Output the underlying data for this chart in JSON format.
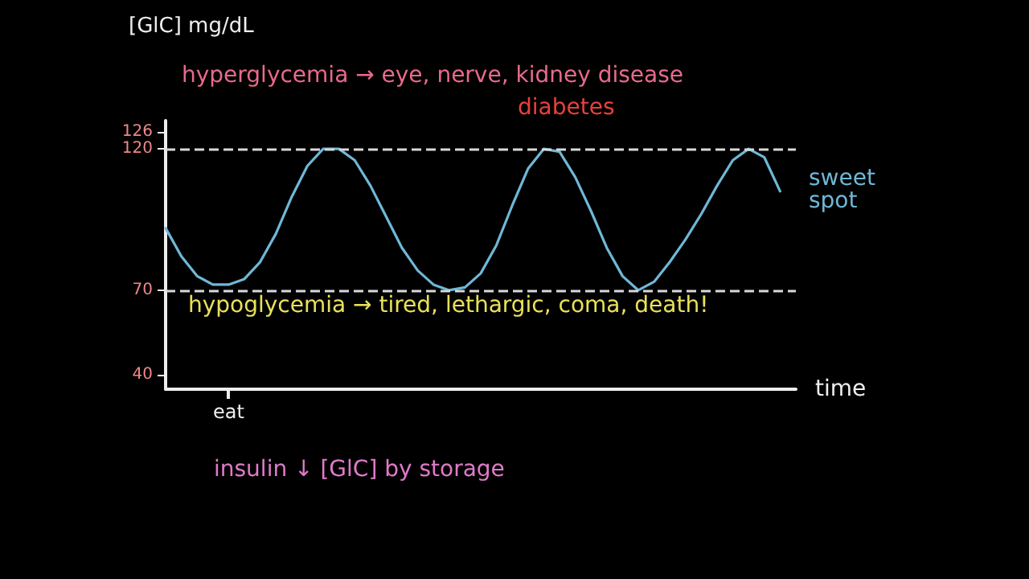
{
  "chart_data": {
    "type": "line",
    "ylabel": "[GlC] mg/dL",
    "xlabel": "time",
    "categories": [
      null,
      null,
      null,
      null,
      "eat",
      null,
      null,
      null,
      null,
      null,
      null,
      null,
      null,
      null,
      null,
      null,
      null,
      null,
      null,
      null,
      null,
      null,
      null,
      null,
      null,
      null,
      null,
      null,
      null,
      null,
      null,
      null,
      null,
      null,
      null,
      null,
      null,
      null,
      null,
      null,
      null
    ],
    "series": [
      {
        "color": "#6fb7d6",
        "values": [
          92,
          82,
          75,
          72,
          72,
          74,
          80,
          90,
          103,
          114,
          120,
          120,
          116,
          107,
          96,
          85,
          77,
          72,
          70,
          71,
          76,
          86,
          100,
          113,
          120,
          119,
          110,
          98,
          85,
          75,
          70,
          73,
          80,
          88,
          97,
          107,
          116,
          120,
          117,
          105,
          null
        ]
      }
    ],
    "ylim": [
      35,
      130
    ],
    "yticks": [
      40,
      70,
      120,
      126
    ],
    "ref_lines": [
      {
        "axis": "y",
        "value": 120,
        "color": "#d8d8d8",
        "line_style": "dashed"
      },
      {
        "axis": "y",
        "value": 70,
        "color": "#d8d8d8",
        "line_style": "dashed"
      }
    ],
    "annotations": [
      "hyperglycemia → eye, nerve, kidney disease",
      "diabetes",
      "hypoglycemia → tired, lethargic, coma, death!",
      "sweet spot",
      "insulin ↓ [GlC] by storage"
    ],
    "grid": false,
    "marker": "none",
    "line_style": "solid"
  }
}
